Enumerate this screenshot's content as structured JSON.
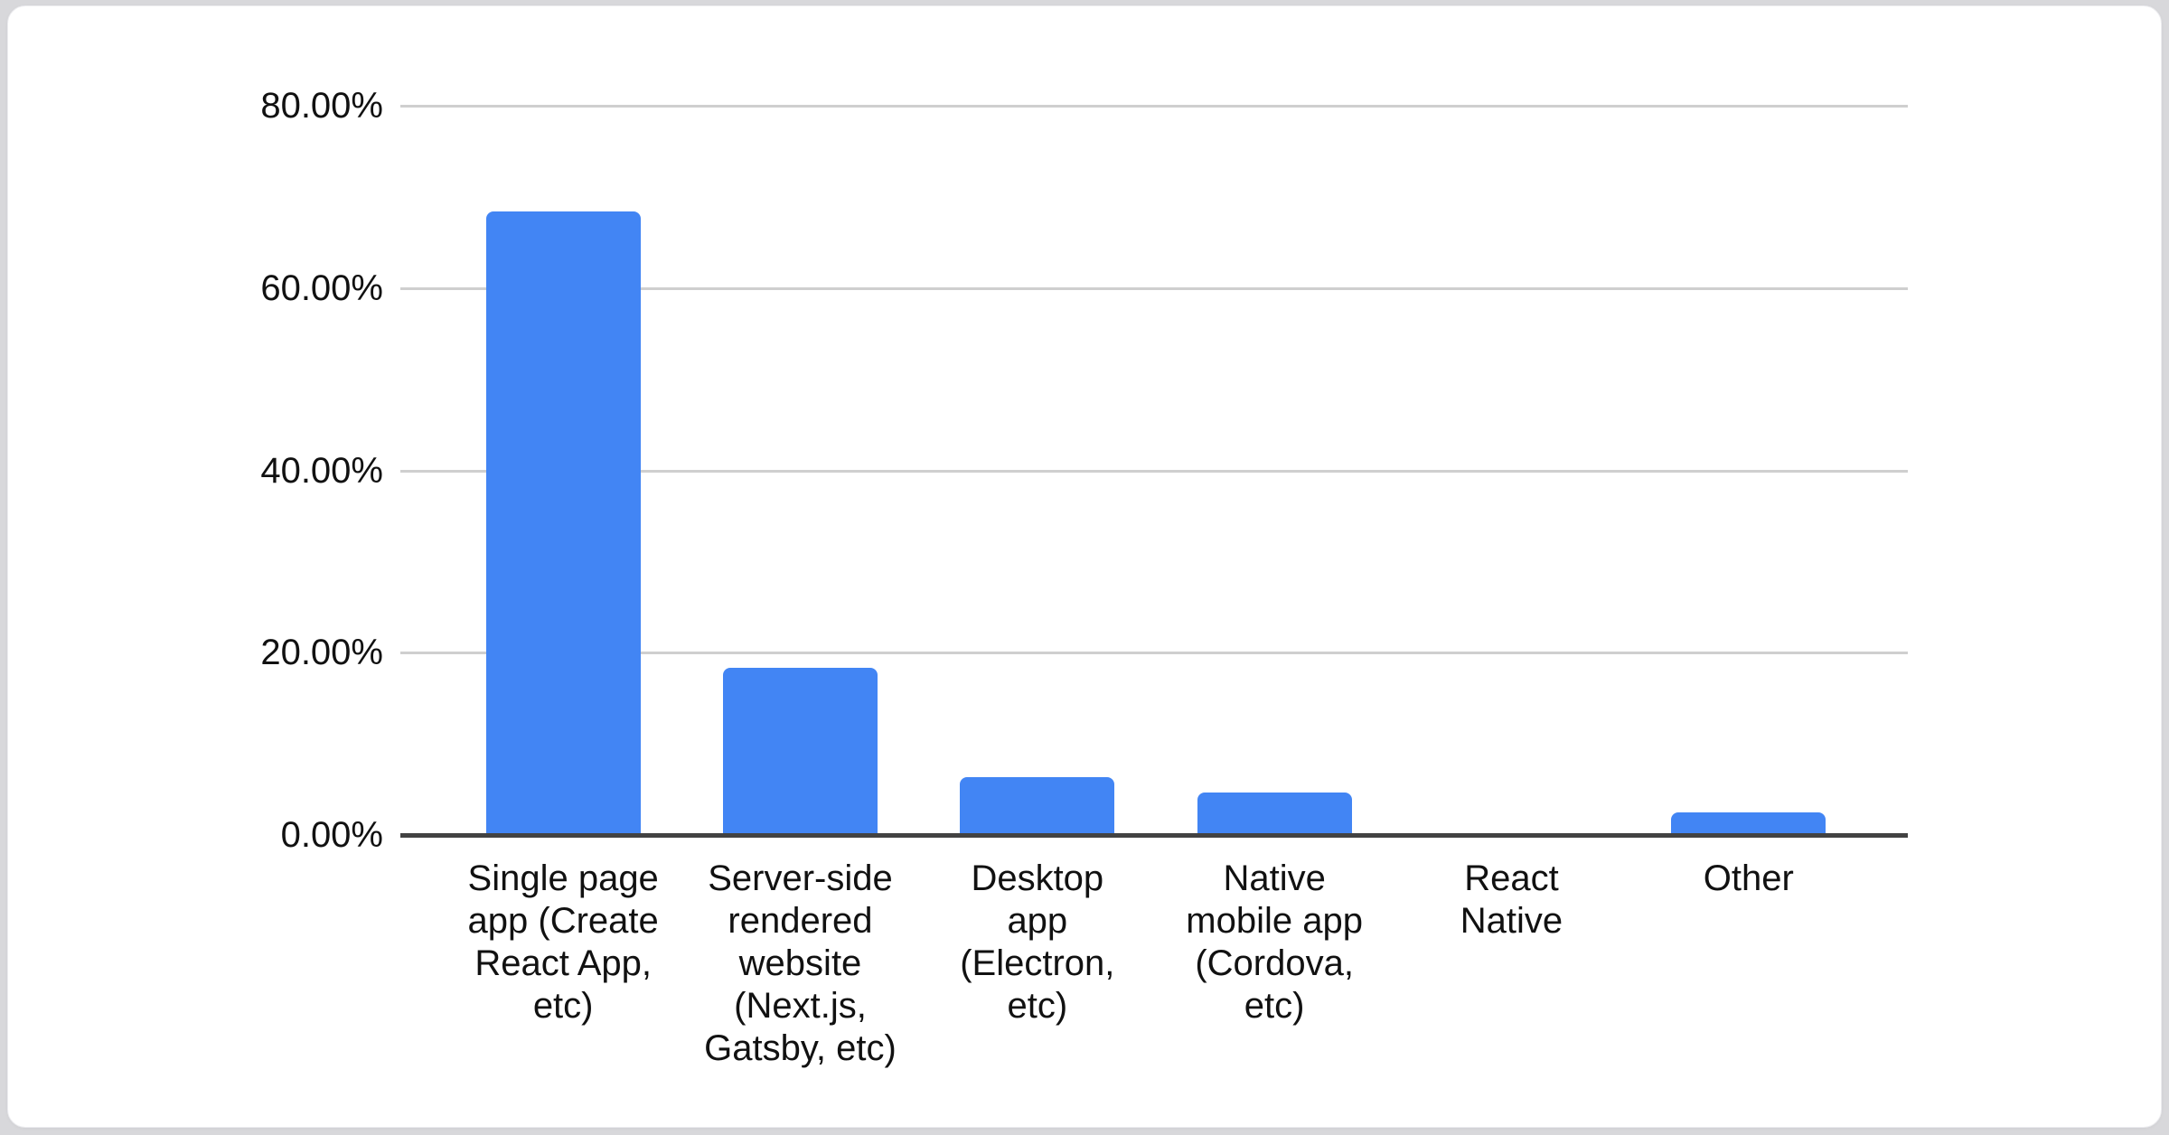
{
  "page": {
    "background_color": "#d8d8db",
    "card_background_color": "#ffffff"
  },
  "chart_data": {
    "type": "bar",
    "title": "",
    "xlabel": "",
    "ylabel": "",
    "categories": [
      "Single page app (Create React App, etc)",
      "Server-side rendered website (Next.js, Gatsby, etc)",
      "Desktop app (Electron, etc)",
      "Native mobile app (Cordova, etc)",
      "React Native",
      "Other"
    ],
    "values": [
      68.4,
      18.3,
      6.3,
      4.7,
      0,
      2.5
    ],
    "value_unit": "%",
    "ylim": [
      0,
      80
    ],
    "ytick_labels": [
      "0.00%",
      "20.00%",
      "40.00%",
      "60.00%",
      "80.00%"
    ],
    "ytick_values": [
      0,
      20,
      40,
      60,
      80
    ],
    "grid": true,
    "legend_position": "none",
    "bar_color": "#4285f4",
    "gridline_color": "#cfcfcf",
    "axis_line_color": "#424242",
    "label_color": "#111111"
  },
  "x_axis_label_lines": [
    [
      "Single page",
      "app (Create",
      "React App,",
      "etc)"
    ],
    [
      "Server-side",
      "rendered",
      "website",
      "(Next.js,",
      "Gatsby, etc)"
    ],
    [
      "Desktop",
      "app",
      "(Electron,",
      "etc)"
    ],
    [
      "Native",
      "mobile app",
      "(Cordova,",
      "etc)"
    ],
    [
      "React",
      "Native"
    ],
    [
      "Other"
    ]
  ]
}
